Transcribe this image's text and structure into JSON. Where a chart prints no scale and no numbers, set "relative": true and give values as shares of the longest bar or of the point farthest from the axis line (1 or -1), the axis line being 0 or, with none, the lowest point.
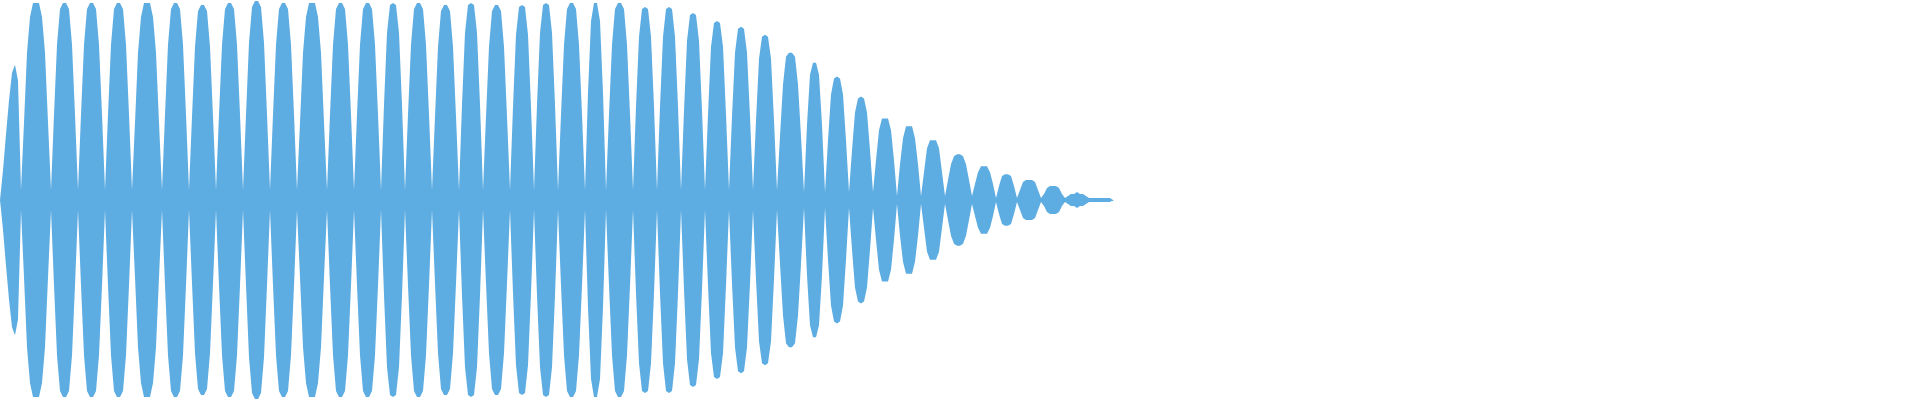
{
  "chart_data": {
    "type": "area",
    "relative": true,
    "tick_labels": false,
    "categories": [
      null,
      null,
      null,
      null,
      null,
      null,
      null,
      null,
      null,
      null,
      null,
      null,
      null,
      null,
      null,
      null,
      null,
      null,
      null,
      null,
      null,
      null,
      null,
      null,
      null,
      null,
      null,
      null,
      null,
      null,
      null,
      null,
      null,
      null,
      null,
      null,
      null,
      null,
      null,
      null,
      null,
      null,
      null,
      null,
      null,
      null,
      null,
      null,
      null,
      null,
      null,
      null,
      null,
      null,
      null,
      null,
      null,
      null,
      null,
      null,
      null,
      null,
      null,
      null,
      null,
      null,
      null,
      null,
      null,
      null,
      null,
      null,
      null,
      null,
      null,
      null,
      null,
      null,
      null,
      null,
      null,
      null,
      null,
      null,
      null,
      null,
      null,
      null,
      null,
      null,
      null,
      null,
      null,
      null,
      null,
      null,
      null,
      null,
      null,
      null,
      null,
      null,
      null,
      null,
      null,
      null,
      null,
      null,
      null,
      null,
      null,
      null,
      null,
      null,
      null,
      null,
      null,
      null,
      null,
      null,
      null,
      null,
      null,
      null,
      null,
      null,
      null,
      null,
      null,
      null,
      null,
      null,
      null,
      null,
      null,
      null,
      null,
      null,
      null,
      null,
      null,
      null,
      null,
      null,
      null,
      null,
      null,
      null,
      null,
      null,
      null,
      null,
      null,
      null,
      null,
      null,
      null,
      null,
      null,
      null,
      null,
      null,
      null,
      null,
      null,
      null,
      null,
      null,
      null,
      null,
      null,
      null,
      null,
      null,
      null,
      null,
      null,
      null,
      null,
      null,
      null,
      null,
      null,
      null,
      null,
      null,
      null,
      null,
      null,
      null,
      null,
      null,
      null,
      null,
      null,
      null,
      null,
      null,
      null,
      null,
      null,
      null,
      null,
      null,
      null,
      null,
      null,
      null,
      null,
      null,
      null,
      null,
      null,
      null,
      null,
      null,
      null,
      null,
      null,
      null,
      null,
      null,
      null,
      null,
      null,
      null,
      null,
      null,
      null,
      null,
      null,
      null,
      null,
      null,
      null,
      null,
      null,
      null,
      null,
      null,
      null,
      null,
      null,
      null,
      null,
      null,
      null,
      null,
      null,
      null,
      null,
      null,
      null,
      null,
      null,
      null,
      null,
      null,
      null,
      null,
      null,
      null,
      null,
      null,
      null,
      null,
      null,
      null,
      null,
      null,
      null,
      null,
      null,
      null,
      null,
      null,
      null,
      null,
      null,
      null,
      null,
      null,
      null,
      null,
      null,
      null,
      null,
      null,
      null,
      null,
      null,
      null,
      null,
      null,
      null,
      null,
      null,
      null,
      null,
      null,
      null,
      null,
      null,
      null,
      null,
      null,
      null,
      null,
      null,
      null,
      null,
      null,
      null,
      null,
      null,
      null,
      null,
      null,
      null,
      null,
      null,
      null,
      null,
      null,
      null,
      null,
      null,
      null,
      null,
      null,
      null,
      null,
      null,
      null,
      null,
      null,
      null,
      null,
      null,
      null,
      null,
      null,
      null,
      null,
      null,
      null,
      null,
      null,
      null,
      null,
      null,
      null,
      null,
      null,
      null,
      null,
      null,
      null,
      null,
      null,
      null,
      null,
      null,
      null,
      null,
      null,
      null,
      null,
      null,
      null,
      null,
      null
    ],
    "series": [
      {
        "color": "#5dade2",
        "values": [
          0,
          0.15,
          0.33,
          0.5,
          0.64,
          0.68,
          0.6,
          0.05,
          0.39,
          0.74,
          0.92,
          0.99,
          0.99,
          0.99,
          0.92,
          0.74,
          0.39,
          0.05,
          0.43,
          0.78,
          0.96,
          0.99,
          0.99,
          0.96,
          0.78,
          0.43,
          0.05,
          0.43,
          0.78,
          0.96,
          0.99,
          0.99,
          0.96,
          0.78,
          0.43,
          0.05,
          0.43,
          0.78,
          0.96,
          0.99,
          0.99,
          0.96,
          0.78,
          0.43,
          0.05,
          0.39,
          0.74,
          0.92,
          0.99,
          0.99,
          0.99,
          0.92,
          0.74,
          0.39,
          0.05,
          0.43,
          0.78,
          0.96,
          0.99,
          0.99,
          0.96,
          0.78,
          0.43,
          0.05,
          0.42,
          0.77,
          0.95,
          0.98,
          0.98,
          0.95,
          0.77,
          0.42,
          0.05,
          0.43,
          0.78,
          0.96,
          0.99,
          0.99,
          0.96,
          0.78,
          0.43,
          0.05,
          0.43,
          0.79,
          0.97,
          1,
          1,
          0.97,
          0.79,
          0.43,
          0.05,
          0.43,
          0.78,
          0.96,
          0.99,
          0.99,
          0.96,
          0.78,
          0.43,
          0.05,
          0.39,
          0.74,
          0.92,
          0.99,
          0.99,
          0.99,
          0.92,
          0.74,
          0.39,
          0.05,
          0.43,
          0.78,
          0.96,
          0.99,
          0.99,
          0.96,
          0.78,
          0.43,
          0.05,
          0.43,
          0.78,
          0.96,
          0.99,
          0.99,
          0.96,
          0.78,
          0.43,
          0.05,
          0.48,
          0.84,
          0.98,
          0.99,
          0.98,
          0.84,
          0.48,
          0.05,
          0.43,
          0.78,
          0.96,
          0.99,
          0.99,
          0.96,
          0.78,
          0.43,
          0.05,
          0.42,
          0.77,
          0.95,
          0.98,
          0.98,
          0.95,
          0.77,
          0.42,
          0.05,
          0.48,
          0.84,
          0.98,
          0.99,
          0.98,
          0.84,
          0.48,
          0.05,
          0.42,
          0.77,
          0.95,
          0.98,
          0.98,
          0.95,
          0.77,
          0.42,
          0.05,
          0.47,
          0.83,
          0.97,
          0.98,
          0.97,
          0.83,
          0.47,
          0.05,
          0.48,
          0.84,
          0.98,
          0.99,
          0.98,
          0.84,
          0.48,
          0.05,
          0.43,
          0.78,
          0.96,
          0.99,
          0.99,
          0.96,
          0.78,
          0.43,
          0.05,
          0.54,
          0.9,
          0.99,
          0.99,
          0.9,
          0.54,
          0.05,
          0.43,
          0.78,
          0.96,
          0.99,
          0.99,
          0.96,
          0.78,
          0.43,
          0.05,
          0.47,
          0.82,
          0.96,
          0.97,
          0.96,
          0.82,
          0.47,
          0.05,
          0.47,
          0.82,
          0.96,
          0.97,
          0.96,
          0.82,
          0.47,
          0.05,
          0.45,
          0.8,
          0.93,
          0.94,
          0.93,
          0.8,
          0.45,
          0.05,
          0.43,
          0.77,
          0.89,
          0.9,
          0.89,
          0.77,
          0.43,
          0.05,
          0.42,
          0.74,
          0.86,
          0.87,
          0.86,
          0.74,
          0.42,
          0.05,
          0.4,
          0.71,
          0.82,
          0.83,
          0.82,
          0.71,
          0.4,
          0.05,
          0.32,
          0.58,
          0.72,
          0.74,
          0.74,
          0.72,
          0.58,
          0.32,
          0.04,
          0.38,
          0.63,
          0.69,
          0.69,
          0.63,
          0.38,
          0.04,
          0.3,
          0.53,
          0.61,
          0.62,
          0.61,
          0.53,
          0.3,
          0.04,
          0.25,
          0.44,
          0.51,
          0.52,
          0.51,
          0.44,
          0.25,
          0.04,
          0.2,
          0.35,
          0.41,
          0.41,
          0.41,
          0.35,
          0.2,
          0.02,
          0.18,
          0.31,
          0.37,
          0.37,
          0.37,
          0.31,
          0.18,
          0.02,
          0.14,
          0.26,
          0.3,
          0.3,
          0.3,
          0.26,
          0.14,
          0.02,
          0.1,
          0.18,
          0.22,
          0.23,
          0.23,
          0.22,
          0.18,
          0.1,
          0.02,
          0.08,
          0.14,
          0.17,
          0.17,
          0.17,
          0.14,
          0.08,
          0.01,
          0.07,
          0.12,
          0.13,
          0.13,
          0.12,
          0.07,
          0.01,
          0.05,
          0.09,
          0.1,
          0.1,
          0.1,
          0.09,
          0.05,
          0.01,
          0.03,
          0.06,
          0.07,
          0.07,
          0.07,
          0.06,
          0.03,
          0.01,
          0.02,
          0.03,
          0.03,
          0.04,
          0.03,
          0.03,
          0.02,
          0.01,
          0.01,
          0.01,
          0.01,
          0.01,
          0.01,
          0.01,
          0.01,
          0
        ]
      },
      {
        "color": "#5dade2",
        "values": [
          0,
          -0.15,
          -0.33,
          -0.5,
          -0.64,
          -0.68,
          -0.6,
          -0.05,
          -0.39,
          -0.74,
          -0.92,
          -0.99,
          -0.99,
          -0.99,
          -0.92,
          -0.74,
          -0.39,
          -0.05,
          -0.43,
          -0.78,
          -0.96,
          -0.99,
          -0.99,
          -0.96,
          -0.78,
          -0.43,
          -0.05,
          -0.43,
          -0.78,
          -0.96,
          -0.99,
          -0.99,
          -0.96,
          -0.78,
          -0.43,
          -0.05,
          -0.43,
          -0.78,
          -0.96,
          -0.99,
          -0.99,
          -0.96,
          -0.78,
          -0.43,
          -0.05,
          -0.39,
          -0.74,
          -0.92,
          -0.99,
          -0.99,
          -0.99,
          -0.92,
          -0.74,
          -0.39,
          -0.05,
          -0.43,
          -0.78,
          -0.96,
          -0.99,
          -0.99,
          -0.96,
          -0.78,
          -0.43,
          -0.05,
          -0.42,
          -0.77,
          -0.95,
          -0.98,
          -0.98,
          -0.95,
          -0.77,
          -0.42,
          -0.05,
          -0.43,
          -0.78,
          -0.96,
          -0.99,
          -0.99,
          -0.96,
          -0.78,
          -0.43,
          -0.05,
          -0.43,
          -0.79,
          -0.97,
          -1,
          -1,
          -0.97,
          -0.79,
          -0.43,
          -0.05,
          -0.43,
          -0.78,
          -0.96,
          -0.99,
          -0.99,
          -0.96,
          -0.78,
          -0.43,
          -0.05,
          -0.39,
          -0.74,
          -0.92,
          -0.99,
          -0.99,
          -0.99,
          -0.92,
          -0.74,
          -0.39,
          -0.05,
          -0.43,
          -0.78,
          -0.96,
          -0.99,
          -0.99,
          -0.96,
          -0.78,
          -0.43,
          -0.05,
          -0.43,
          -0.78,
          -0.96,
          -0.99,
          -0.99,
          -0.96,
          -0.78,
          -0.43,
          -0.05,
          -0.48,
          -0.84,
          -0.98,
          -0.99,
          -0.98,
          -0.84,
          -0.48,
          -0.05,
          -0.43,
          -0.78,
          -0.96,
          -0.99,
          -0.99,
          -0.96,
          -0.78,
          -0.43,
          -0.05,
          -0.42,
          -0.77,
          -0.95,
          -0.98,
          -0.98,
          -0.95,
          -0.77,
          -0.42,
          -0.05,
          -0.48,
          -0.84,
          -0.98,
          -0.99,
          -0.98,
          -0.84,
          -0.48,
          -0.05,
          -0.42,
          -0.77,
          -0.95,
          -0.98,
          -0.98,
          -0.95,
          -0.77,
          -0.42,
          -0.05,
          -0.47,
          -0.83,
          -0.97,
          -0.98,
          -0.97,
          -0.83,
          -0.47,
          -0.05,
          -0.48,
          -0.84,
          -0.98,
          -0.99,
          -0.98,
          -0.84,
          -0.48,
          -0.05,
          -0.43,
          -0.78,
          -0.96,
          -0.99,
          -0.99,
          -0.96,
          -0.78,
          -0.43,
          -0.05,
          -0.54,
          -0.9,
          -0.99,
          -0.99,
          -0.9,
          -0.54,
          -0.05,
          -0.43,
          -0.78,
          -0.96,
          -0.99,
          -0.99,
          -0.96,
          -0.78,
          -0.43,
          -0.05,
          -0.47,
          -0.82,
          -0.96,
          -0.97,
          -0.96,
          -0.82,
          -0.47,
          -0.05,
          -0.47,
          -0.82,
          -0.96,
          -0.97,
          -0.96,
          -0.82,
          -0.47,
          -0.05,
          -0.45,
          -0.8,
          -0.93,
          -0.94,
          -0.93,
          -0.8,
          -0.45,
          -0.05,
          -0.43,
          -0.77,
          -0.89,
          -0.9,
          -0.89,
          -0.77,
          -0.43,
          -0.05,
          -0.42,
          -0.74,
          -0.86,
          -0.87,
          -0.86,
          -0.74,
          -0.42,
          -0.05,
          -0.4,
          -0.71,
          -0.82,
          -0.83,
          -0.82,
          -0.71,
          -0.4,
          -0.05,
          -0.32,
          -0.58,
          -0.72,
          -0.74,
          -0.74,
          -0.72,
          -0.58,
          -0.32,
          -0.04,
          -0.38,
          -0.63,
          -0.69,
          -0.69,
          -0.63,
          -0.38,
          -0.04,
          -0.3,
          -0.53,
          -0.61,
          -0.62,
          -0.61,
          -0.53,
          -0.3,
          -0.04,
          -0.25,
          -0.44,
          -0.51,
          -0.52,
          -0.51,
          -0.44,
          -0.25,
          -0.04,
          -0.2,
          -0.35,
          -0.41,
          -0.41,
          -0.41,
          -0.35,
          -0.2,
          -0.02,
          -0.18,
          -0.31,
          -0.37,
          -0.37,
          -0.37,
          -0.31,
          -0.18,
          -0.02,
          -0.14,
          -0.26,
          -0.3,
          -0.3,
          -0.3,
          -0.26,
          -0.14,
          -0.02,
          -0.1,
          -0.18,
          -0.22,
          -0.23,
          -0.23,
          -0.22,
          -0.18,
          -0.1,
          -0.02,
          -0.08,
          -0.14,
          -0.17,
          -0.17,
          -0.17,
          -0.14,
          -0.08,
          -0.01,
          -0.07,
          -0.12,
          -0.13,
          -0.13,
          -0.12,
          -0.07,
          -0.01,
          -0.05,
          -0.09,
          -0.1,
          -0.1,
          -0.1,
          -0.09,
          -0.05,
          -0.01,
          -0.03,
          -0.06,
          -0.07,
          -0.07,
          -0.07,
          -0.06,
          -0.03,
          -0.01,
          -0.02,
          -0.03,
          -0.03,
          -0.04,
          -0.03,
          -0.03,
          -0.02,
          -0.01,
          -0.01,
          -0.01,
          -0.01,
          -0.01,
          -0.01,
          -0.01,
          -0.01,
          0
        ]
      }
    ]
  }
}
